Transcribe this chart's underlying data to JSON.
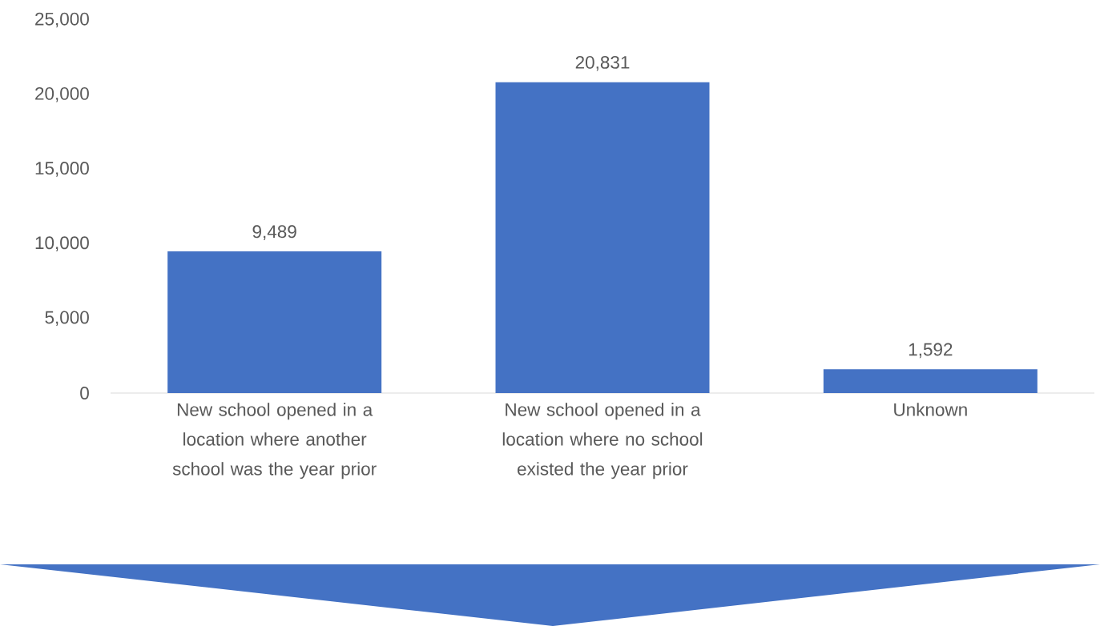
{
  "chart_data": {
    "type": "bar",
    "categories": [
      "New school opened in a location where another school was the year prior",
      "New school opened in a location where no school existed the year prior",
      "Unknown"
    ],
    "values": [
      9489,
      20831,
      1592
    ],
    "value_labels": [
      "9,489",
      "20,831",
      "1,592"
    ],
    "color": "#4472c4",
    "ylim": [
      0,
      25000
    ],
    "yticks": [
      {
        "value": 0,
        "label": "0"
      },
      {
        "value": 5000,
        "label": "5,000"
      },
      {
        "value": 10000,
        "label": "10,000"
      },
      {
        "value": 15000,
        "label": "15,000"
      },
      {
        "value": 20000,
        "label": "20,000"
      },
      {
        "value": 25000,
        "label": "25,000"
      }
    ],
    "grid": false
  }
}
